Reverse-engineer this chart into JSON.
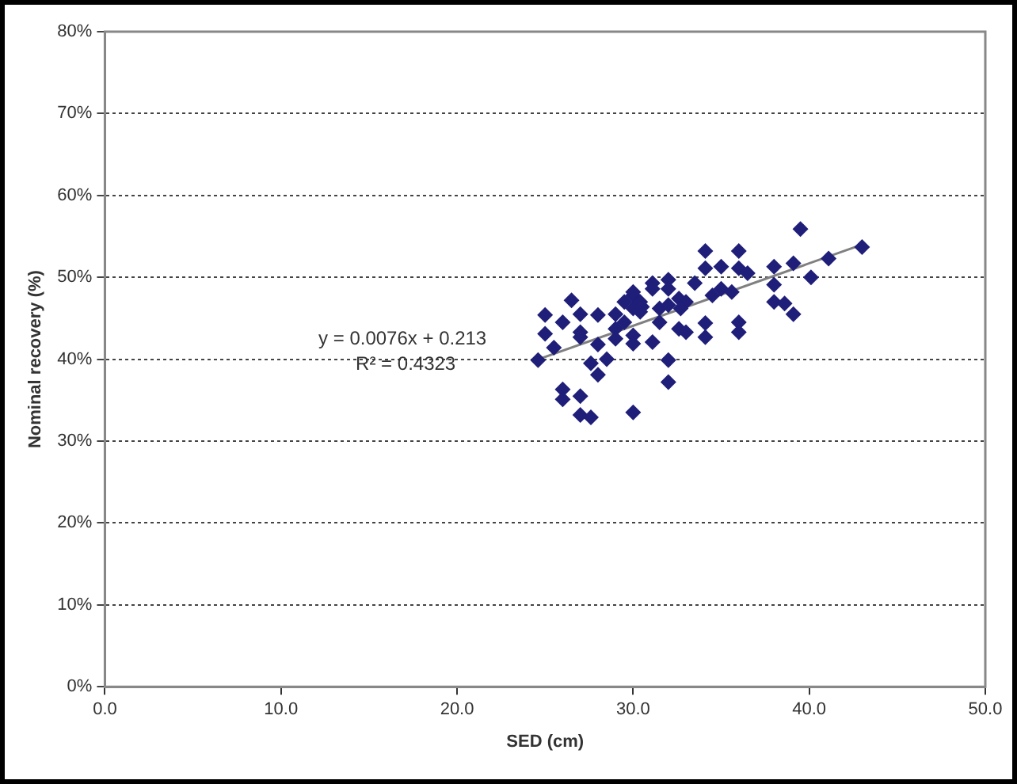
{
  "chart_data": {
    "type": "scatter",
    "xlabel": "SED (cm)",
    "ylabel": "Nominal recovery (%)",
    "annotations": [
      "y = 0.0076x + 0.213",
      "R² = 0.4323"
    ],
    "xlim": [
      0,
      50
    ],
    "xticks": [
      {
        "value": 0,
        "label": "0.0"
      },
      {
        "value": 10,
        "label": "10.0"
      },
      {
        "value": 20,
        "label": "20.0"
      },
      {
        "value": 30,
        "label": "30.0"
      },
      {
        "value": 40,
        "label": "40.0"
      },
      {
        "value": 50,
        "label": "50.0"
      }
    ],
    "ylim": [
      0,
      80
    ],
    "yticks": [
      {
        "value": 0,
        "label": "0%"
      },
      {
        "value": 10,
        "label": "10%"
      },
      {
        "value": 20,
        "label": "20%"
      },
      {
        "value": 30,
        "label": "30%"
      },
      {
        "value": 40,
        "label": "40%"
      },
      {
        "value": 50,
        "label": "50%"
      },
      {
        "value": 60,
        "label": "60%"
      },
      {
        "value": 70,
        "label": "70%"
      },
      {
        "value": 80,
        "label": "80%"
      }
    ],
    "grid": "y",
    "legend": false,
    "series": [
      {
        "marker": "diamond",
        "color": "#1f1f7a",
        "x": [
          24.6,
          25.0,
          25.0,
          25.5,
          26.0,
          26.0,
          26.0,
          26.5,
          27.0,
          27.0,
          27.0,
          27.0,
          27.0,
          27.6,
          27.6,
          28.0,
          28.0,
          28.0,
          28.5,
          29.0,
          29.0,
          29.0,
          29.5,
          29.5,
          30.0,
          30.0,
          30.0,
          30.0,
          30.0,
          30.0,
          30.4,
          30.4,
          31.1,
          31.1,
          31.1,
          31.5,
          31.5,
          32.0,
          32.0,
          32.0,
          32.0,
          32.0,
          32.6,
          32.6,
          33.0,
          33.0,
          33.5,
          34.1,
          34.1,
          34.1,
          34.1,
          35.0,
          35.0,
          35.6,
          36.0,
          36.0,
          36.0,
          36.0,
          36.5,
          38.0,
          38.0,
          38.0,
          38.6,
          39.1,
          39.1,
          39.5,
          40.1,
          41.1,
          43.0,
          30.5,
          32.7,
          34.5
        ],
        "values": [
          39.9,
          45.4,
          43.1,
          41.4,
          36.3,
          35.1,
          44.5,
          47.2,
          45.5,
          43.3,
          42.7,
          35.5,
          33.2,
          32.9,
          39.5,
          38.1,
          41.8,
          45.4,
          40.0,
          45.5,
          43.7,
          42.5,
          47.0,
          44.5,
          46.2,
          47.8,
          48.2,
          42.9,
          41.9,
          33.5,
          47.0,
          45.8,
          49.3,
          48.6,
          42.1,
          44.5,
          46.2,
          49.7,
          48.6,
          46.6,
          39.9,
          37.2,
          47.4,
          43.7,
          47.0,
          43.3,
          49.3,
          53.2,
          51.1,
          44.4,
          42.7,
          51.3,
          48.6,
          48.2,
          53.2,
          51.1,
          44.5,
          43.3,
          50.5,
          51.3,
          49.1,
          47.0,
          46.8,
          45.5,
          51.7,
          55.9,
          50.0,
          52.3,
          53.7,
          46.4,
          46.2,
          47.8
        ]
      },
      {
        "type": "line",
        "marker": "none",
        "color": "#808080",
        "x": [
          24.5,
          43.0
        ],
        "values": [
          39.9,
          54.0
        ]
      }
    ]
  }
}
